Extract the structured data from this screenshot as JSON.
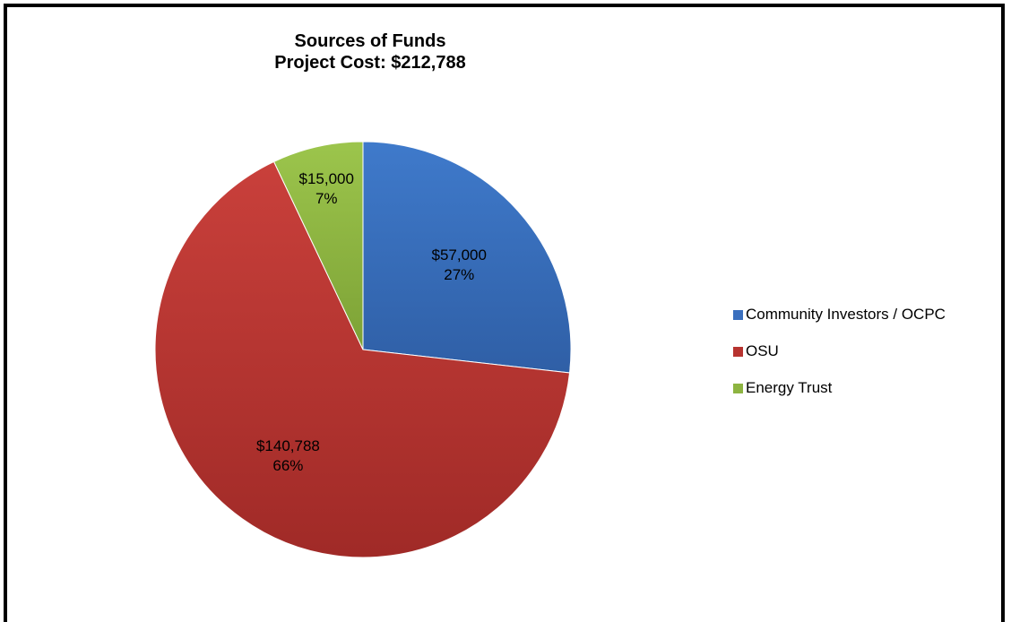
{
  "chart_data": {
    "type": "pie",
    "title": "Sources of Funds",
    "subtitle": "Project Cost: $212,788",
    "categories": [
      "Community Investors / OCPC",
      "OSU",
      "Energy Trust"
    ],
    "values": [
      57000,
      140788,
      15000
    ],
    "value_labels": [
      "$57,000",
      "$140,788",
      "$15,000"
    ],
    "percent_labels": [
      "27%",
      "66%",
      "7%"
    ],
    "colors": [
      "#3a6fbe",
      "#b7332f",
      "#8db441"
    ],
    "legend_position": "right"
  }
}
